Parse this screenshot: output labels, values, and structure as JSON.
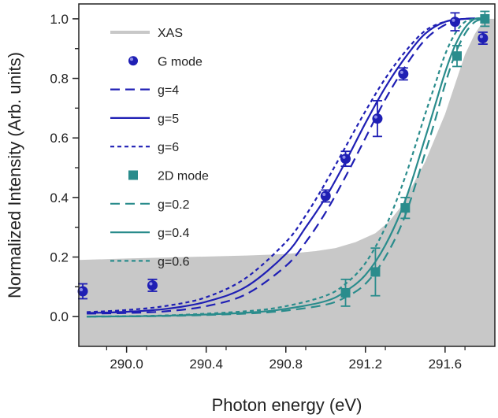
{
  "chart_data": {
    "type": "line",
    "xlabel": "Photon energy (eV)",
    "ylabel": "Normalized Intensity (Arb. units)",
    "xlim": [
      289.76,
      291.85
    ],
    "ylim": [
      -0.1,
      1.05
    ],
    "x_ticks": [
      "290.0",
      "290.4",
      "290.8",
      "291.2",
      "291.6"
    ],
    "x_tick_values": [
      290.0,
      290.4,
      290.8,
      291.2,
      291.6
    ],
    "y_ticks": [
      "0.0",
      "0.2",
      "0.4",
      "0.6",
      "0.8",
      "1.0"
    ],
    "y_tick_values": [
      0.0,
      0.2,
      0.4,
      0.6,
      0.8,
      1.0
    ],
    "colors": {
      "xas": "#c8c8c8",
      "g_mode": "#1f1fb4",
      "d_mode": "#2a8c8c"
    },
    "legend": [
      {
        "label": "XAS",
        "style": "area",
        "color": "#c8c8c8"
      },
      {
        "label": "G mode",
        "style": "circle",
        "color": "#1f1fb4"
      },
      {
        "label": "g=4",
        "style": "dash",
        "color": "#1f1fb4"
      },
      {
        "label": "g=5",
        "style": "solid",
        "color": "#1f1fb4"
      },
      {
        "label": "g=6",
        "style": "short-dash",
        "color": "#1f1fb4"
      },
      {
        "label": "2D mode",
        "style": "square",
        "color": "#2a8c8c"
      },
      {
        "label": "g=0.2",
        "style": "dash",
        "color": "#2a8c8c"
      },
      {
        "label": "g=0.4",
        "style": "solid",
        "color": "#2a8c8c"
      },
      {
        "label": "g=0.6",
        "style": "short-dash",
        "color": "#2a8c8c"
      }
    ],
    "series": [
      {
        "name": "XAS",
        "kind": "area",
        "color": "#c8c8c8",
        "x": [
          289.76,
          290.0,
          290.3,
          290.6,
          290.8,
          290.95,
          291.05,
          291.15,
          291.25,
          291.32,
          291.38,
          291.42,
          291.46,
          291.5,
          291.55,
          291.6,
          291.65,
          291.7,
          291.75,
          291.8,
          291.85
        ],
        "y": [
          0.19,
          0.195,
          0.2,
          0.205,
          0.21,
          0.22,
          0.23,
          0.25,
          0.28,
          0.32,
          0.37,
          0.42,
          0.47,
          0.52,
          0.6,
          0.68,
          0.78,
          0.88,
          0.95,
          1.0,
          1.0
        ]
      },
      {
        "name": "G mode",
        "kind": "points",
        "marker": "circle",
        "color": "#1f1fb4",
        "x": [
          289.78,
          290.13,
          291.0,
          291.1,
          291.26,
          291.39,
          291.65,
          291.79
        ],
        "y": [
          0.085,
          0.105,
          0.405,
          0.53,
          0.665,
          0.815,
          0.99,
          0.935
        ],
        "err": [
          0.025,
          0.02,
          0.02,
          0.025,
          0.06,
          0.02,
          0.03,
          0.02
        ]
      },
      {
        "name": "g=4",
        "kind": "curve",
        "dash": "12,7",
        "color": "#1f1fb4",
        "x": [
          289.8,
          290.0,
          290.2,
          290.4,
          290.6,
          290.8,
          290.9,
          291.0,
          291.1,
          291.2,
          291.3,
          291.4,
          291.5,
          291.6,
          291.7,
          291.8
        ],
        "y": [
          0.01,
          0.012,
          0.018,
          0.035,
          0.075,
          0.17,
          0.25,
          0.35,
          0.47,
          0.6,
          0.73,
          0.84,
          0.93,
          0.98,
          1.0,
          1.0
        ]
      },
      {
        "name": "g=5",
        "kind": "curve",
        "dash": "",
        "color": "#1f1fb4",
        "x": [
          289.8,
          290.0,
          290.2,
          290.4,
          290.6,
          290.8,
          290.9,
          291.0,
          291.1,
          291.2,
          291.3,
          291.4,
          291.5,
          291.6,
          291.7,
          291.8
        ],
        "y": [
          0.012,
          0.016,
          0.026,
          0.05,
          0.1,
          0.21,
          0.3,
          0.4,
          0.52,
          0.65,
          0.77,
          0.87,
          0.95,
          0.99,
          1.0,
          1.0
        ]
      },
      {
        "name": "g=6",
        "kind": "curve",
        "dash": "5,4",
        "color": "#1f1fb4",
        "x": [
          289.8,
          290.0,
          290.2,
          290.4,
          290.6,
          290.8,
          290.9,
          291.0,
          291.1,
          291.2,
          291.3,
          291.4,
          291.5,
          291.6,
          291.7,
          291.8
        ],
        "y": [
          0.015,
          0.022,
          0.036,
          0.065,
          0.13,
          0.25,
          0.34,
          0.45,
          0.57,
          0.69,
          0.8,
          0.89,
          0.96,
          0.99,
          1.0,
          1.0
        ]
      },
      {
        "name": "2D mode",
        "kind": "points",
        "marker": "square",
        "color": "#2a8c8c",
        "x": [
          291.1,
          291.25,
          291.4,
          291.66,
          291.8
        ],
        "y": [
          0.08,
          0.15,
          0.365,
          0.875,
          1.0
        ],
        "err": [
          0.045,
          0.08,
          0.035,
          0.035,
          0.025
        ]
      },
      {
        "name": "g=0.2",
        "kind": "curve",
        "dash": "12,7",
        "color": "#2a8c8c",
        "x": [
          289.8,
          290.2,
          290.6,
          290.8,
          291.0,
          291.1,
          291.2,
          291.3,
          291.4,
          291.5,
          291.55,
          291.6,
          291.65,
          291.7,
          291.75,
          291.8
        ],
        "y": [
          0.0,
          0.002,
          0.01,
          0.02,
          0.04,
          0.065,
          0.11,
          0.2,
          0.34,
          0.55,
          0.66,
          0.78,
          0.88,
          0.95,
          0.99,
          1.0
        ]
      },
      {
        "name": "g=0.4",
        "kind": "curve",
        "dash": "",
        "color": "#2a8c8c",
        "x": [
          289.8,
          290.2,
          290.6,
          290.8,
          291.0,
          291.1,
          291.2,
          291.3,
          291.4,
          291.5,
          291.55,
          291.6,
          291.65,
          291.7,
          291.75,
          291.8
        ],
        "y": [
          0.0,
          0.003,
          0.013,
          0.026,
          0.052,
          0.085,
          0.14,
          0.24,
          0.39,
          0.6,
          0.71,
          0.82,
          0.91,
          0.97,
          1.0,
          1.0
        ]
      },
      {
        "name": "g=0.6",
        "kind": "curve",
        "dash": "5,4",
        "color": "#2a8c8c",
        "x": [
          289.8,
          290.2,
          290.6,
          290.8,
          291.0,
          291.1,
          291.2,
          291.3,
          291.4,
          291.5,
          291.55,
          291.6,
          291.65,
          291.7,
          291.75,
          291.8
        ],
        "y": [
          0.0,
          0.004,
          0.018,
          0.035,
          0.07,
          0.11,
          0.18,
          0.3,
          0.47,
          0.68,
          0.78,
          0.88,
          0.95,
          0.99,
          1.0,
          1.0
        ]
      }
    ]
  }
}
